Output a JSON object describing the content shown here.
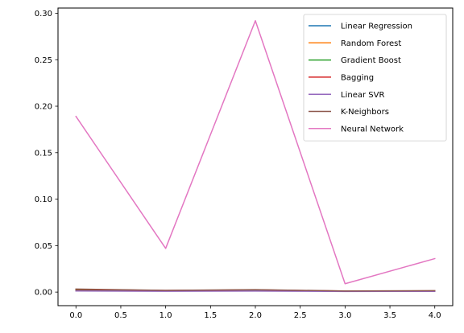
{
  "chart_data": {
    "type": "line",
    "title": "",
    "xlabel": "",
    "ylabel": "",
    "xlim": [
      -0.2,
      4.2
    ],
    "ylim": [
      -0.0146,
      0.3056
    ],
    "xticks": [
      0.0,
      0.5,
      1.0,
      1.5,
      2.0,
      2.5,
      3.0,
      3.5,
      4.0
    ],
    "xtick_labels": [
      "0.0",
      "0.5",
      "1.0",
      "1.5",
      "2.0",
      "2.5",
      "3.0",
      "3.5",
      "4.0"
    ],
    "yticks": [
      0.0,
      0.05,
      0.1,
      0.15,
      0.2,
      0.25,
      0.3
    ],
    "ytick_labels": [
      "0.00",
      "0.05",
      "0.10",
      "0.15",
      "0.20",
      "0.25",
      "0.30"
    ],
    "grid": false,
    "legend_position": "top-right",
    "x": [
      0,
      1,
      2,
      3,
      4
    ],
    "series": [
      {
        "name": "Linear Regression",
        "color": "#1f77b4",
        "values": [
          0.0015,
          0.0012,
          0.0014,
          0.001,
          0.0011
        ]
      },
      {
        "name": "Random Forest",
        "color": "#ff7f0e",
        "values": [
          0.0025,
          0.0015,
          0.0022,
          0.001,
          0.0012
        ]
      },
      {
        "name": "Gradient Boost",
        "color": "#2ca02c",
        "values": [
          0.0022,
          0.0014,
          0.002,
          0.0009,
          0.0011
        ]
      },
      {
        "name": "Bagging",
        "color": "#d62728",
        "values": [
          0.0028,
          0.0017,
          0.0024,
          0.0011,
          0.0013
        ]
      },
      {
        "name": "Linear SVR",
        "color": "#9467bd",
        "values": [
          0.0012,
          0.0009,
          0.0011,
          0.0007,
          0.0008
        ]
      },
      {
        "name": "K-Neighbors",
        "color": "#8c564b",
        "values": [
          0.0032,
          0.0018,
          0.0026,
          0.0012,
          0.0015
        ]
      },
      {
        "name": "Neural Network",
        "color": "#e377c2",
        "values": [
          0.189,
          0.047,
          0.292,
          0.009,
          0.036
        ]
      }
    ]
  }
}
